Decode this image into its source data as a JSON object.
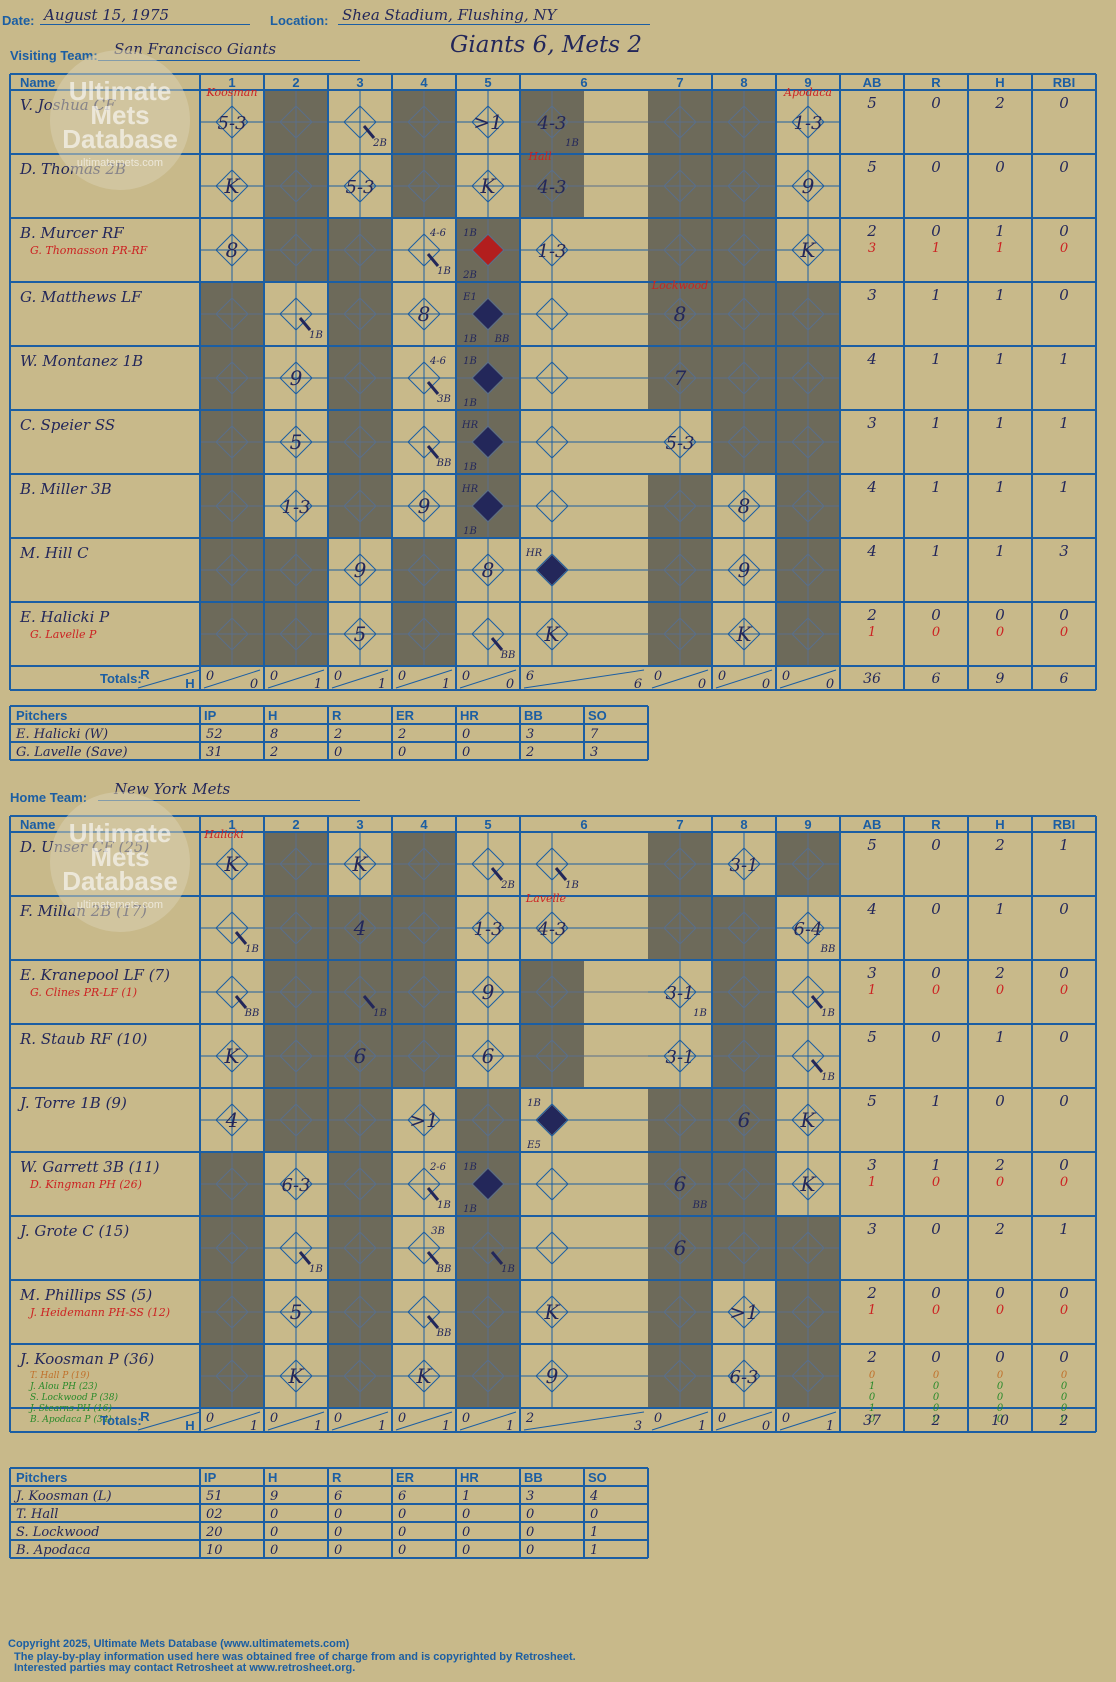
{
  "header": {
    "date_label": "Date:",
    "date": "August 15, 1975",
    "location_label": "Location:",
    "location": "Shea Stadium, Flushing, NY",
    "visiting_label": "Visiting Team:",
    "visiting": "San Francisco Giants",
    "title": "Giants 6, Mets 2",
    "home_label": "Home Team:",
    "home": "New York Mets"
  },
  "watermark": {
    "line1": "Ultimate",
    "line2": "Mets",
    "line3": "Database",
    "url": "ultimatemets.com"
  },
  "colheads": [
    "Name",
    "1",
    "2",
    "3",
    "4",
    "5",
    "6",
    "7",
    "8",
    "9",
    "AB",
    "R",
    "H",
    "RBI"
  ],
  "totals_label": "Totals:",
  "colors": {
    "grid": "#1b5ea3",
    "shade": "#6d6a5a",
    "ink": "#23275a",
    "red": "#cc2222",
    "green": "#2a8a2a",
    "orange": "#c0702a"
  },
  "visitors": {
    "rows": [
      {
        "name": "V. Joshua CF",
        "stats": [
          "5",
          "0",
          "2",
          "0"
        ],
        "sub": null,
        "subStats": null
      },
      {
        "name": "D. Thomas 2B",
        "stats": [
          "5",
          "0",
          "0",
          "0"
        ],
        "sub": null,
        "subStats": null
      },
      {
        "name": "B. Murcer RF",
        "stats": [
          "2",
          "0",
          "1",
          "0"
        ],
        "sub": "G. Thomasson PR-RF",
        "subStats": [
          "3",
          "1",
          "1",
          "0"
        ]
      },
      {
        "name": "G. Matthews LF",
        "stats": [
          "3",
          "1",
          "1",
          "0"
        ],
        "sub": null,
        "subStats": null
      },
      {
        "name": "W. Montanez 1B",
        "stats": [
          "4",
          "1",
          "1",
          "1"
        ],
        "sub": null,
        "subStats": null
      },
      {
        "name": "C. Speier SS",
        "stats": [
          "3",
          "1",
          "1",
          "1"
        ],
        "sub": null,
        "subStats": null
      },
      {
        "name": "B. Miller 3B",
        "stats": [
          "4",
          "1",
          "1",
          "1"
        ],
        "sub": null,
        "subStats": null
      },
      {
        "name": "M. Hill C",
        "stats": [
          "4",
          "1",
          "1",
          "3"
        ],
        "sub": null,
        "subStats": null
      },
      {
        "name": "E. Halicki P",
        "stats": [
          "2",
          "0",
          "0",
          "0"
        ],
        "sub": "G. Lavelle P",
        "subStats": [
          "1",
          "0",
          "0",
          "0"
        ]
      }
    ],
    "totals": {
      "innings": [
        [
          "0",
          "0"
        ],
        [
          "0",
          "1"
        ],
        [
          "0",
          "1"
        ],
        [
          "0",
          "1"
        ],
        [
          "0",
          "0"
        ],
        [
          "6",
          "6"
        ],
        [
          "0",
          "0"
        ],
        [
          "0",
          "0"
        ],
        [
          "0",
          "0"
        ]
      ],
      "stats": [
        "36",
        "6",
        "9",
        "6"
      ]
    },
    "pitchers": {
      "heads": [
        "Pitchers",
        "IP",
        "H",
        "R",
        "ER",
        "HR",
        "BB",
        "SO"
      ],
      "rows": [
        [
          "E. Halicki (W)",
          "52",
          "8",
          "2",
          "2",
          "0",
          "3",
          "7"
        ],
        [
          "G. Lavelle (Save)",
          "31",
          "2",
          "0",
          "0",
          "0",
          "2",
          "3"
        ]
      ]
    }
  },
  "home_team": {
    "rows": [
      {
        "name": "D. Unser CF (25)",
        "stats": [
          "5",
          "0",
          "2",
          "1"
        ],
        "sub": null,
        "subStats": null
      },
      {
        "name": "F. Millan 2B (17)",
        "stats": [
          "4",
          "0",
          "1",
          "0"
        ],
        "sub": null,
        "subStats": null
      },
      {
        "name": "E. Kranepool LF (7)",
        "stats": [
          "3",
          "0",
          "2",
          "0"
        ],
        "sub": "G. Clines PR-LF (1)",
        "subStats": [
          "1",
          "0",
          "0",
          "0"
        ]
      },
      {
        "name": "R. Staub RF (10)",
        "stats": [
          "5",
          "0",
          "1",
          "0"
        ],
        "sub": null,
        "subStats": null
      },
      {
        "name": "J. Torre 1B (9)",
        "stats": [
          "5",
          "1",
          "0",
          "0"
        ],
        "sub": null,
        "subStats": null
      },
      {
        "name": "W. Garrett 3B (11)",
        "stats": [
          "3",
          "1",
          "2",
          "0"
        ],
        "sub": "D. Kingman PH (26)",
        "subStats": [
          "1",
          "0",
          "0",
          "0"
        ]
      },
      {
        "name": "J. Grote C (15)",
        "stats": [
          "3",
          "0",
          "2",
          "1"
        ],
        "sub": null,
        "subStats": null
      },
      {
        "name": "M. Phillips SS (5)",
        "stats": [
          "2",
          "0",
          "0",
          "0"
        ],
        "sub": "J. Heidemann PH-SS (12)",
        "subStats": [
          "1",
          "0",
          "0",
          "0"
        ]
      },
      {
        "name": "J. Koosman P (36)",
        "stats": [
          "2",
          "0",
          "0",
          "0"
        ],
        "sub": null,
        "subStats": null
      }
    ],
    "extra_subs": [
      {
        "name": "T. Hall P (19)",
        "stats": [
          "0",
          "0",
          "0",
          "0"
        ],
        "color": "orange"
      },
      {
        "name": "J. Alou PH (23)",
        "stats": [
          "1",
          "0",
          "0",
          "0"
        ],
        "color": "green"
      },
      {
        "name": "S. Lockwood P (38)",
        "stats": [
          "0",
          "0",
          "0",
          "0"
        ],
        "color": "green"
      },
      {
        "name": "J. Stearns PH (16)",
        "stats": [
          "1",
          "0",
          "0",
          "0"
        ],
        "color": "green"
      },
      {
        "name": "B. Apodaca P (34)",
        "stats": [
          "0",
          "0",
          "0",
          "0"
        ],
        "color": "green"
      }
    ],
    "totals": {
      "innings": [
        [
          "0",
          "1"
        ],
        [
          "0",
          "1"
        ],
        [
          "0",
          "1"
        ],
        [
          "0",
          "1"
        ],
        [
          "0",
          "1"
        ],
        [
          "2",
          "3"
        ],
        [
          "0",
          "1"
        ],
        [
          "0",
          "0"
        ],
        [
          "0",
          "1"
        ]
      ],
      "stats": [
        "37",
        "2",
        "10",
        "2"
      ]
    },
    "pitchers": {
      "heads": [
        "Pitchers",
        "IP",
        "H",
        "R",
        "ER",
        "HR",
        "BB",
        "SO"
      ],
      "rows": [
        [
          "J. Koosman (L)",
          "51",
          "9",
          "6",
          "6",
          "1",
          "3",
          "4"
        ],
        [
          "T. Hall",
          "02",
          "0",
          "0",
          "0",
          "0",
          "0",
          "0"
        ],
        [
          "S. Lockwood",
          "20",
          "0",
          "0",
          "0",
          "0",
          "0",
          "1"
        ],
        [
          "B. Apodaca",
          "10",
          "0",
          "0",
          "0",
          "0",
          "0",
          "1"
        ]
      ]
    }
  },
  "plays": {
    "visitors": [
      [
        "5-3",
        null,
        "2B",
        null,
        ">1",
        "4-3/1B",
        null,
        null,
        "1-3"
      ],
      [
        "K",
        null,
        "5-3",
        null,
        "K",
        "4-3",
        null,
        null,
        "9"
      ],
      [
        "8",
        null,
        null,
        "1B 4-6",
        "1B/2B/run",
        "1-3",
        null,
        null,
        "K"
      ],
      [
        null,
        "1B",
        null,
        "8",
        "E1/1B/BB/run",
        null,
        "8",
        null,
        null
      ],
      [
        null,
        "9",
        null,
        "3B 4-6",
        "1B/1B/run",
        null,
        "7",
        null,
        null
      ],
      [
        null,
        "5",
        null,
        "BB",
        "HR/1B/run",
        null,
        "5-3",
        null,
        null
      ],
      [
        null,
        "1-3",
        null,
        "9",
        "HR/1B/run",
        null,
        null,
        "8",
        null
      ],
      [
        null,
        null,
        "9",
        null,
        "8",
        "HR/run",
        null,
        "9",
        null
      ],
      [
        null,
        null,
        "5",
        null,
        "BB",
        "K",
        null,
        "K",
        null
      ]
    ],
    "home": [
      [
        "K",
        null,
        "K",
        null,
        "2B",
        "1B",
        null,
        "3-1",
        null
      ],
      [
        "1B/BB",
        null,
        "4",
        null,
        "1-3",
        "4-3",
        null,
        null,
        "6-4/BB"
      ],
      [
        "BB",
        null,
        "1B",
        null,
        "9",
        null,
        "3-1/1B",
        null,
        "1B/6-4"
      ],
      [
        "K",
        null,
        "6",
        null,
        "6",
        null,
        "3-1",
        null,
        "1B"
      ],
      [
        "4",
        null,
        null,
        ">1",
        null,
        "1B/E5/run",
        null,
        "6",
        "K"
      ],
      [
        null,
        "6-3",
        null,
        "1B 2-6",
        "1B/1B/run",
        null,
        "6/BB",
        null,
        "K"
      ],
      [
        null,
        "1B",
        null,
        "BB 3B",
        "1B/1B",
        null,
        "6",
        null,
        null
      ],
      [
        null,
        "5",
        null,
        "BB",
        null,
        "K",
        null,
        ">1",
        null
      ],
      [
        null,
        "K",
        null,
        "K",
        null,
        "9",
        null,
        "6-3",
        null
      ]
    ],
    "pitcher_notes": {
      "v_koosman": "Koosman",
      "v_hall": "Hall",
      "v_lockwood": "Lockwood",
      "v_apodaca": "Apodaca",
      "h_halicki": "Halicki",
      "h_lavelle": "Lavelle"
    }
  },
  "footer": {
    "line1": "Copyright 2025, Ultimate Mets Database (www.ultimatemets.com)",
    "line2": "The play-by-play information used here was obtained free of charge from and is copyrighted by Retrosheet.",
    "line3": "Interested parties may contact Retrosheet at www.retrosheet.org."
  }
}
